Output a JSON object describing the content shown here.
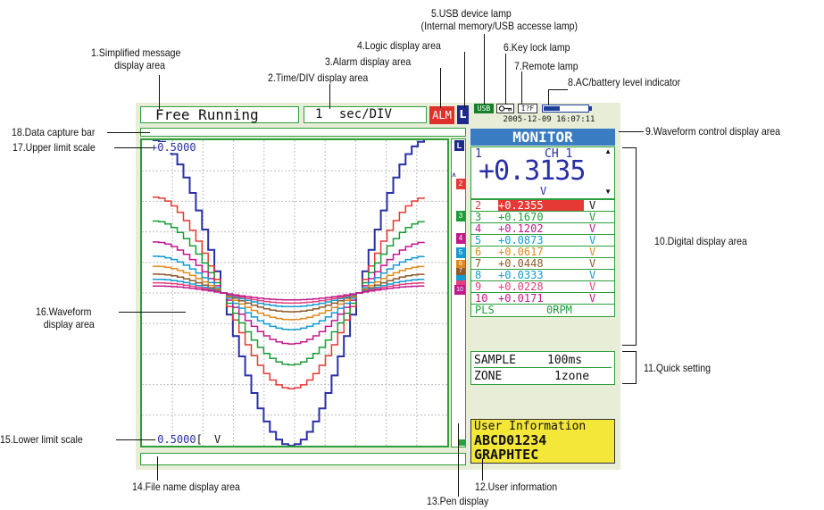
{
  "annotations": {
    "a1": [
      "1.Simplified message",
      "display area"
    ],
    "a2": "2.Time/DIV display area",
    "a3": "3.Alarm display area",
    "a4": "4.Logic display area",
    "a5": [
      "5.USB device lamp",
      "(Internal memory/USB accesse lamp)"
    ],
    "a6": "6.Key lock lamp",
    "a7": "7.Remote lamp",
    "a8": "8.AC/battery level indicator",
    "a9": "9.Waveform control display area",
    "a10": "10.Digital display area",
    "a11": "11.Quick setting",
    "a12": "12.User information",
    "a13": "13.Pen display",
    "a14": "14.File name display area",
    "a15": "15.Lower limit scale",
    "a16": [
      "16.Waveform",
      "display area"
    ],
    "a17": "17.Upper limit scale",
    "a18": "18.Data capture bar"
  },
  "screen": {
    "message": "Free Running",
    "time_div_value": "1",
    "time_div_unit": "sec/DIV",
    "alarm": "ALM",
    "logic": "L",
    "usb": "USB",
    "remote": "I?F",
    "datetime": "2005-12-09 16:07:11",
    "control_title": "MONITOR",
    "upper_scale": "+0.5000",
    "lower_scale": "-0.5000",
    "lower_unit": "V",
    "main_channel": {
      "num": "1",
      "name": "CH 1",
      "value": "+0.3135",
      "unit": "V"
    },
    "channels": [
      {
        "num": "2",
        "value": "+0.2355",
        "unit": "V",
        "color": "#e53935"
      },
      {
        "num": "3",
        "value": "+0.1670",
        "unit": "V",
        "color": "#1a9e38"
      },
      {
        "num": "4",
        "value": "+0.1202",
        "unit": "V",
        "color": "#c2188c"
      },
      {
        "num": "5",
        "value": "+0.0873",
        "unit": "V",
        "color": "#139bd2"
      },
      {
        "num": "6",
        "value": "+0.0617",
        "unit": "V",
        "color": "#e08a1e"
      },
      {
        "num": "7",
        "value": "+0.0448",
        "unit": "V",
        "color": "#8e5a2a"
      },
      {
        "num": "8",
        "value": "+0.0333",
        "unit": "V",
        "color": "#139bd2"
      },
      {
        "num": "9",
        "value": "+0.0228",
        "unit": "V",
        "color": "#e5407a"
      },
      {
        "num": "10",
        "value": "+0.0171",
        "unit": "V",
        "color": "#c2188c"
      }
    ],
    "pulse": {
      "label": "PLS",
      "value": "0RPM"
    },
    "quick": {
      "sample_label": "SAMPLE",
      "sample_value": "100ms",
      "zone_label": "ZONE",
      "zone_value": "1zone"
    },
    "user_info": [
      "User Information",
      "ABCD01234",
      "GRAPHTEC"
    ],
    "pen_labels": [
      "L",
      "1",
      "2",
      "3",
      "4",
      "5",
      "6",
      "7",
      "8",
      "9",
      "10"
    ]
  },
  "colors": {
    "ch1": "#2a2fa8",
    "ch2": "#e53935",
    "ch3": "#1a9e38",
    "ch4": "#c2188c",
    "ch5": "#139bd2",
    "ch6": "#e08a1e",
    "ch7": "#8e5a2a",
    "ch8": "#139bd2",
    "ch9": "#e5407a",
    "ch10": "#c2188c",
    "frame": "#2c9e3b",
    "monitor_header": "#3a7cc2",
    "alarm": "#e0302a",
    "user_info_bg": "#f5e63a"
  },
  "waveform": {
    "amplitudes": [
      0.5,
      0.3135,
      0.2355,
      0.167,
      0.1202,
      0.0873,
      0.0617,
      0.0448,
      0.0333,
      0.0228
    ],
    "series_colors": [
      "#2a2fa8",
      "#e53935",
      "#1a9e38",
      "#c2188c",
      "#139bd2",
      "#e08a1e",
      "#8e5a2a",
      "#139bd2",
      "#e5407a",
      "#c2188c"
    ],
    "ylim": [
      -0.5,
      0.5
    ],
    "grid": true
  }
}
